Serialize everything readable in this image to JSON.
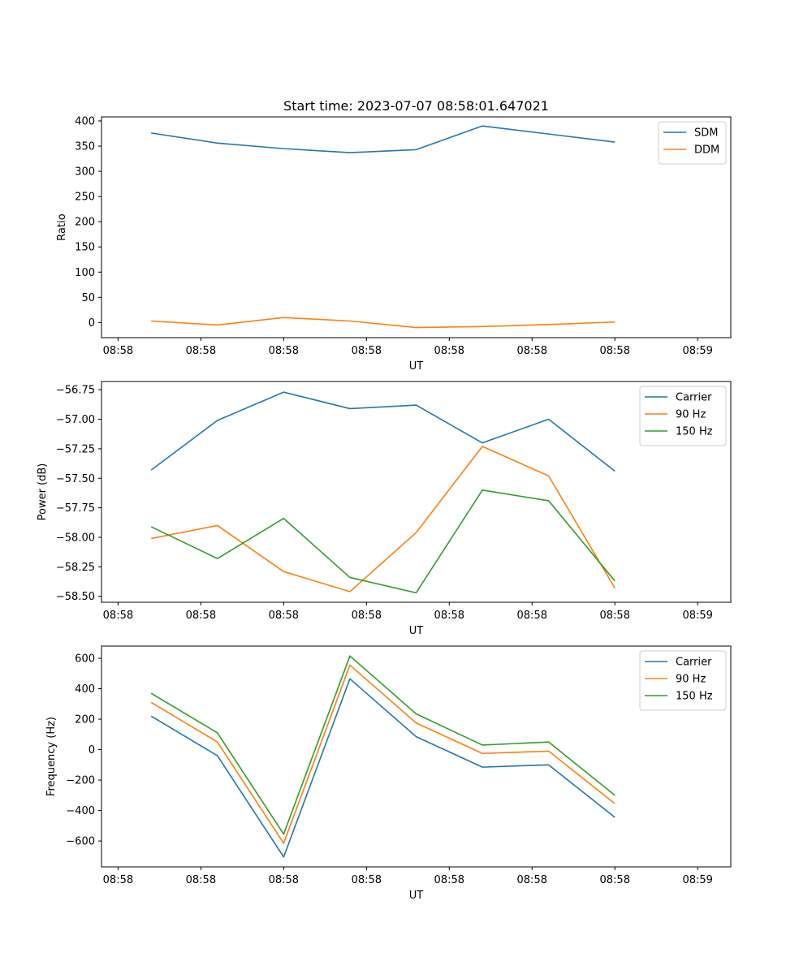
{
  "title": "Start time: 2023-07-07 08:58:01.647021",
  "chart_data": [
    {
      "type": "line",
      "xlabel": "UT",
      "ylabel": "Ratio",
      "x_tick_labels": [
        "08:58",
        "08:58",
        "08:58",
        "08:58",
        "08:58",
        "08:58",
        "08:58",
        "08:59"
      ],
      "xlim": [
        -0.75,
        8.75
      ],
      "ylim": [
        -30,
        408
      ],
      "yticks": [
        0,
        50,
        100,
        150,
        200,
        250,
        300,
        350,
        400
      ],
      "ytick_labels": [
        "0",
        "50",
        "100",
        "150",
        "200",
        "250",
        "300",
        "350",
        "400"
      ],
      "x": [
        0,
        1,
        2,
        3,
        4,
        5,
        6,
        7
      ],
      "series": [
        {
          "name": "SDM",
          "color": "#1f77b4",
          "values": [
            376,
            356,
            345,
            337,
            343,
            390,
            374,
            358
          ]
        },
        {
          "name": "DDM",
          "color": "#ff7f0e",
          "values": [
            3,
            -5,
            10,
            3,
            -10,
            -8,
            -4,
            1
          ]
        }
      ],
      "legend": "top-right"
    },
    {
      "type": "line",
      "xlabel": "UT",
      "ylabel": "Power (dB)",
      "x_tick_labels": [
        "08:58",
        "08:58",
        "08:58",
        "08:58",
        "08:58",
        "08:58",
        "08:58",
        "08:59"
      ],
      "xlim": [
        -0.75,
        8.75
      ],
      "ylim": [
        -58.55,
        -56.68
      ],
      "yticks": [
        -58.5,
        -58.25,
        -58.0,
        -57.75,
        -57.5,
        -57.25,
        -57.0,
        -56.75
      ],
      "ytick_labels": [
        "−58.50",
        "−58.25",
        "−58.00",
        "−57.75",
        "−57.50",
        "−57.25",
        "−57.00",
        "−56.75"
      ],
      "x": [
        0,
        1,
        2,
        3,
        4,
        5,
        6,
        7
      ],
      "series": [
        {
          "name": "Carrier",
          "color": "#1f77b4",
          "values": [
            -57.43,
            -57.01,
            -56.77,
            -56.91,
            -56.88,
            -57.2,
            -57.0,
            -57.44
          ]
        },
        {
          "name": "90 Hz",
          "color": "#ff7f0e",
          "values": [
            -58.01,
            -57.9,
            -58.29,
            -58.46,
            -57.96,
            -57.23,
            -57.48,
            -58.43
          ]
        },
        {
          "name": "150 Hz",
          "color": "#2ca02c",
          "values": [
            -57.91,
            -58.18,
            -57.84,
            -58.34,
            -58.47,
            -57.6,
            -57.69,
            -58.37
          ]
        }
      ],
      "legend": "top-right"
    },
    {
      "type": "line",
      "xlabel": "UT",
      "ylabel": "Frequency (Hz)",
      "x_tick_labels": [
        "08:58",
        "08:58",
        "08:58",
        "08:58",
        "08:58",
        "08:58",
        "08:58",
        "08:59"
      ],
      "xlim": [
        -0.75,
        8.75
      ],
      "ylim": [
        -770,
        680
      ],
      "yticks": [
        -600,
        -400,
        -200,
        0,
        200,
        400,
        600
      ],
      "ytick_labels": [
        "−600",
        "−400",
        "−200",
        "0",
        "200",
        "400",
        "600"
      ],
      "x": [
        0,
        1,
        2,
        3,
        4,
        5,
        6,
        7
      ],
      "series": [
        {
          "name": "Carrier",
          "color": "#1f77b4",
          "values": [
            220,
            -40,
            -705,
            465,
            85,
            -115,
            -100,
            -445
          ]
        },
        {
          "name": "90 Hz",
          "color": "#ff7f0e",
          "values": [
            310,
            50,
            -615,
            555,
            175,
            -25,
            -10,
            -355
          ]
        },
        {
          "name": "150 Hz",
          "color": "#2ca02c",
          "values": [
            370,
            110,
            -555,
            615,
            235,
            30,
            50,
            -300
          ]
        }
      ],
      "legend": "top-right"
    }
  ]
}
